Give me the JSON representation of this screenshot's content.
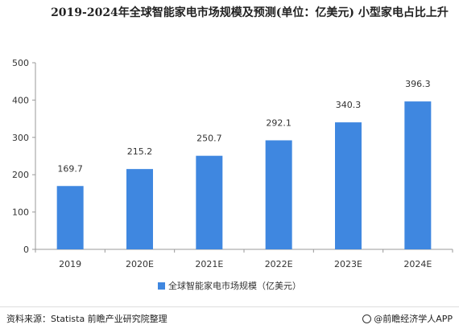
{
  "title": "2019-2024年全球智能家电市场规模及预测(单位：亿美元) 小型家电占比上升",
  "chart_data": {
    "type": "bar",
    "categories": [
      "2019",
      "2020E",
      "2021E",
      "2022E",
      "2023E",
      "2024E"
    ],
    "series": [
      {
        "name": "全球智能家电市场规模（亿美元）",
        "values": [
          169.7,
          215.2,
          250.7,
          292.1,
          340.3,
          396.3
        ],
        "data_labels": [
          "169.7",
          "215.2",
          "250.7",
          "292.1",
          "340.3",
          "396.3"
        ]
      }
    ],
    "yticks": [
      "0",
      "100",
      "200",
      "300",
      "400",
      "500"
    ],
    "ylim": [
      0,
      500
    ],
    "grid": false,
    "legend_position": "bottom",
    "bar_color": "#3f87e0"
  },
  "footer": {
    "source": "资料来源：Statista 前瞻产业研究院整理",
    "brand": "@前瞻经济学人APP"
  }
}
